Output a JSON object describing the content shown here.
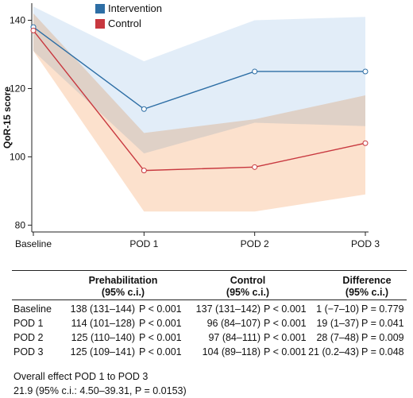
{
  "colors": {
    "intervention": "#2d6ea5",
    "control": "#c8383f",
    "intervention_band": "#cfe1f3",
    "control_band": "#fbdcc4"
  },
  "chart_data": {
    "type": "line",
    "categories": [
      "Baseline",
      "POD 1",
      "POD 2",
      "POD 3"
    ],
    "ylabel": "QoR-15 score",
    "ylim": [
      78,
      145
    ],
    "yticks": [
      80,
      100,
      120,
      140
    ],
    "series": [
      {
        "name": "Intervention",
        "values": [
          138,
          114,
          125,
          125
        ],
        "ci_lower": [
          131,
          101,
          110,
          109
        ],
        "ci_upper": [
          144,
          128,
          140,
          141
        ]
      },
      {
        "name": "Control",
        "values": [
          137,
          96,
          97,
          104
        ],
        "ci_lower": [
          131,
          84,
          84,
          89
        ],
        "ci_upper": [
          142,
          107,
          111,
          118
        ]
      }
    ],
    "legend": "top-left"
  },
  "table": {
    "headers": [
      {
        "line1": "Prehabilitation",
        "line2": "(95% c.i.)"
      },
      {
        "line1": "Control",
        "line2": "(95% c.i.)"
      },
      {
        "line1": "Difference",
        "line2": "(95% c.i.)"
      }
    ],
    "rows": [
      {
        "label": "Baseline",
        "pre": "138 (131–144)",
        "pre_p": "P < 0.001",
        "ctrl": "137 (131–142)",
        "ctrl_p": "P < 0.001",
        "diff": "1 (−7–10)",
        "diff_p": "P = 0.779"
      },
      {
        "label": "POD 1",
        "pre": "114 (101–128)",
        "pre_p": "P < 0.001",
        "ctrl": "96 (84–107)",
        "ctrl_p": "P < 0.001",
        "diff": "19 (1–37)",
        "diff_p": "P = 0.041"
      },
      {
        "label": "POD 2",
        "pre": "125 (110–140)",
        "pre_p": "P < 0.001",
        "ctrl": "97 (84–111)",
        "ctrl_p": "P < 0.001",
        "diff": "28 (7–48)",
        "diff_p": "P = 0.009"
      },
      {
        "label": "POD 3",
        "pre": "125 (109–141)",
        "pre_p": "P < 0.001",
        "ctrl": "104 (89–118)",
        "ctrl_p": "P < 0.001",
        "diff": "21 (0.2–43)",
        "diff_p": "P = 0.048"
      }
    ]
  },
  "overall": {
    "line1": "Overall effect POD 1 to POD 3",
    "line2": "21.9 (95% c.i.: 4.50–39.31, P = 0.0153)"
  }
}
